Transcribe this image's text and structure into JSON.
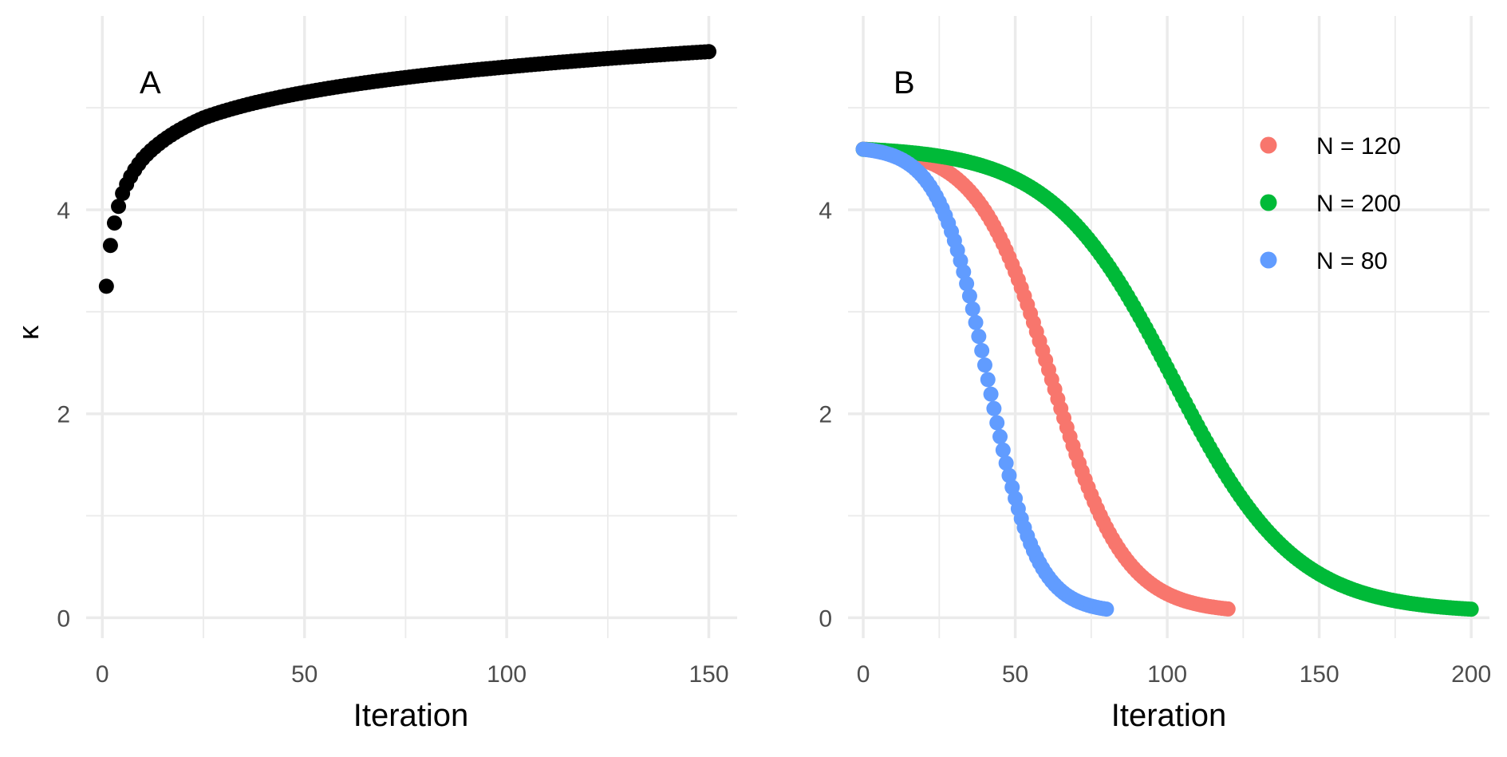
{
  "chart_data": [
    {
      "type": "scatter",
      "panel_label": "A",
      "xlabel": "Iteration",
      "ylabel": "κ",
      "xlim": [
        -4,
        157
      ],
      "ylim": [
        -0.2,
        5.9
      ],
      "xticks": [
        0,
        50,
        100,
        150
      ],
      "yticks": [
        0,
        2,
        4
      ],
      "grid": true,
      "series": [
        {
          "color": "#000000",
          "function": "log",
          "x_start": 1,
          "x_end": 150,
          "step": 1,
          "anchors": [
            [
              1,
              3.25
            ],
            [
              2,
              3.65
            ],
            [
              3,
              3.87
            ],
            [
              5,
              4.16
            ],
            [
              10,
              4.5
            ],
            [
              25,
              4.9
            ],
            [
              50,
              5.15
            ],
            [
              100,
              5.4
            ],
            [
              150,
              5.55
            ]
          ]
        }
      ]
    },
    {
      "type": "scatter",
      "panel_label": "B",
      "xlabel": "Iteration",
      "ylabel": "",
      "xlim": [
        -5,
        206
      ],
      "ylim": [
        -0.2,
        5.9
      ],
      "xticks": [
        0,
        50,
        100,
        150,
        200
      ],
      "yticks": [
        0,
        2,
        4
      ],
      "grid": true,
      "legend_position": "top-right",
      "series": [
        {
          "name": "N = 120",
          "color": "#F8766D",
          "x_start": 0,
          "x_end": 120,
          "step": 1,
          "y_start": 4.62,
          "y_end": 0.05,
          "midpoint": 62,
          "width": 12
        },
        {
          "name": "N = 200",
          "color": "#00BA38",
          "x_start": 0,
          "x_end": 200,
          "step": 1,
          "y_start": 4.62,
          "y_end": 0.05,
          "midpoint": 102,
          "width": 20
        },
        {
          "name": "N = 80",
          "color": "#619CFF",
          "x_start": 0,
          "x_end": 80,
          "step": 1,
          "y_start": 4.62,
          "y_end": 0.05,
          "midpoint": 41,
          "width": 8
        }
      ]
    }
  ]
}
